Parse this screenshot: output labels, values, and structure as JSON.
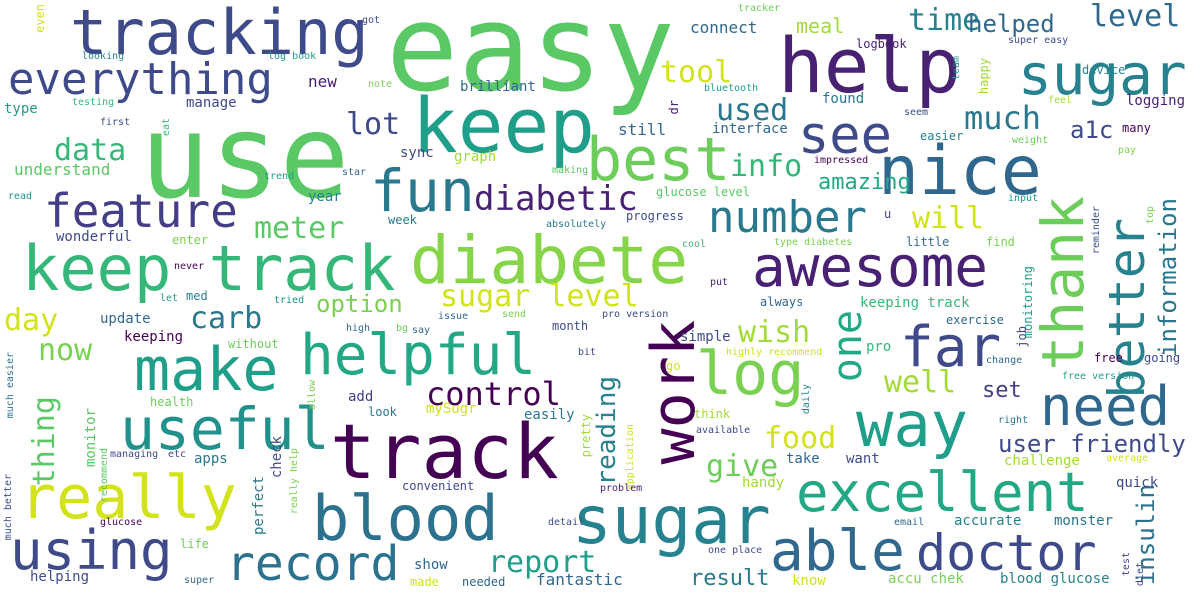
{
  "words": [
    {
      "text": "easy",
      "color": "#5ac864"
    },
    {
      "text": "use",
      "color": "#5ac864"
    },
    {
      "text": "help",
      "color": "#482173"
    },
    {
      "text": "tracking",
      "color": "#3e4a89"
    },
    {
      "text": "keep",
      "color": "#1f9e89"
    },
    {
      "text": "everything",
      "color": "#3e4a89"
    },
    {
      "text": "sugar",
      "color": "#26828e"
    },
    {
      "text": "nice",
      "color": "#30678d"
    },
    {
      "text": "see",
      "color": "#3e4a89"
    },
    {
      "text": "best",
      "color": "#6ccd5a"
    },
    {
      "text": "fun",
      "color": "#2a788e"
    },
    {
      "text": "feature",
      "color": "#433e85"
    },
    {
      "text": "keep track",
      "color": "#35b779"
    },
    {
      "text": "diabete",
      "color": "#86d549"
    },
    {
      "text": "awesome",
      "color": "#482173"
    },
    {
      "text": "thank",
      "color": "#6ccd5a"
    },
    {
      "text": "better",
      "color": "#26828e"
    },
    {
      "text": "information",
      "color": "#2a788e"
    },
    {
      "text": "number",
      "color": "#2a788e"
    },
    {
      "text": "diabetic",
      "color": "#482173"
    },
    {
      "text": "make",
      "color": "#1f9e89"
    },
    {
      "text": "helpful",
      "color": "#22a884"
    },
    {
      "text": "work",
      "color": "#440154"
    },
    {
      "text": "log",
      "color": "#7ad151"
    },
    {
      "text": "far",
      "color": "#3e4a89"
    },
    {
      "text": "way",
      "color": "#1f9e89"
    },
    {
      "text": "need",
      "color": "#30678d"
    },
    {
      "text": "useful",
      "color": "#21918c"
    },
    {
      "text": "track",
      "color": "#440154"
    },
    {
      "text": "really",
      "color": "#d2e21b"
    },
    {
      "text": "blood",
      "color": "#2c728e"
    },
    {
      "text": "sugar",
      "color": "#26828e"
    },
    {
      "text": "excellent",
      "color": "#22a884"
    },
    {
      "text": "using",
      "color": "#3e4a89"
    },
    {
      "text": "able",
      "color": "#31688e"
    },
    {
      "text": "doctor",
      "color": "#3e4a89"
    },
    {
      "text": "record",
      "color": "#2c728e"
    },
    {
      "text": "one",
      "color": "#22a884"
    },
    {
      "text": "control",
      "color": "#440154"
    },
    {
      "text": "report",
      "color": "#1f9e89"
    },
    {
      "text": "level",
      "color": "#31688e"
    },
    {
      "text": "time",
      "color": "#26828e"
    },
    {
      "text": "helped",
      "color": "#31688e"
    },
    {
      "text": "tool",
      "color": "#d2e21b"
    },
    {
      "text": "meal",
      "color": "#a2da37"
    },
    {
      "text": "used",
      "color": "#2a788e"
    },
    {
      "text": "much",
      "color": "#2a788e"
    },
    {
      "text": "lot",
      "color": "#3e4a89"
    },
    {
      "text": "info",
      "color": "#35b779"
    },
    {
      "text": "data",
      "color": "#35b779"
    },
    {
      "text": "a1c",
      "color": "#3e4a89"
    },
    {
      "text": "amazing",
      "color": "#22a884"
    },
    {
      "text": "will",
      "color": "#d2e21b"
    },
    {
      "text": "meter",
      "color": "#5ac864"
    },
    {
      "text": "sugar level",
      "color": "#d2e21b"
    },
    {
      "text": "option",
      "color": "#7ad151"
    },
    {
      "text": "carb",
      "color": "#2a788e"
    },
    {
      "text": "day",
      "color": "#d2e21b"
    },
    {
      "text": "now",
      "color": "#7ad151"
    },
    {
      "text": "wish",
      "color": "#a2da37"
    },
    {
      "text": "well",
      "color": "#a2da37"
    },
    {
      "text": "thing",
      "color": "#5ac864"
    },
    {
      "text": "reading",
      "color": "#26828e"
    },
    {
      "text": "food",
      "color": "#d2e21b"
    },
    {
      "text": "give",
      "color": "#6ccd5a"
    },
    {
      "text": "user friendly",
      "color": "#3e4a89"
    },
    {
      "text": "set",
      "color": "#433e85"
    },
    {
      "text": "insulin",
      "color": "#2c728e"
    },
    {
      "text": "connect",
      "color": "#31688e"
    },
    {
      "text": "logbook",
      "color": "#482173"
    },
    {
      "text": "manage",
      "color": "#3e4a89"
    },
    {
      "text": "new",
      "color": "#482173"
    },
    {
      "text": "brilliant",
      "color": "#31688e"
    },
    {
      "text": "found",
      "color": "#2a788e"
    },
    {
      "text": "interface",
      "color": "#30678d"
    },
    {
      "text": "logging",
      "color": "#482173"
    },
    {
      "text": "understand",
      "color": "#5ac864"
    },
    {
      "text": "sync",
      "color": "#3e4a89"
    },
    {
      "text": "graph",
      "color": "#a2da37"
    },
    {
      "text": "still",
      "color": "#31688e"
    },
    {
      "text": "year",
      "color": "#26828e"
    },
    {
      "text": "week",
      "color": "#2a788e"
    },
    {
      "text": "wonderful",
      "color": "#3e4a89"
    },
    {
      "text": "progress",
      "color": "#3e4a89"
    },
    {
      "text": "enter",
      "color": "#7ad151"
    },
    {
      "text": "keeping track",
      "color": "#35b779"
    },
    {
      "text": "little",
      "color": "#31688e"
    },
    {
      "text": "update",
      "color": "#31688e"
    },
    {
      "text": "keeping",
      "color": "#440154"
    },
    {
      "text": "simple",
      "color": "#3e4a89"
    },
    {
      "text": "exercise",
      "color": "#30678d"
    },
    {
      "text": "always",
      "color": "#30678d"
    },
    {
      "text": "pro",
      "color": "#35b779"
    },
    {
      "text": "free",
      "color": "#440154"
    },
    {
      "text": "going",
      "color": "#3e4a89"
    },
    {
      "text": "month",
      "color": "#3e4a89"
    },
    {
      "text": "add",
      "color": "#433e85"
    },
    {
      "text": "easily",
      "color": "#2a788e"
    },
    {
      "text": "mySugr",
      "color": "#d2e21b"
    },
    {
      "text": "look",
      "color": "#2a788e"
    },
    {
      "text": "health",
      "color": "#6ccd5a"
    },
    {
      "text": "apps",
      "color": "#2a788e"
    },
    {
      "text": "check",
      "color": "#3e4a89"
    },
    {
      "text": "want",
      "color": "#3e4a89"
    },
    {
      "text": "take",
      "color": "#31688e"
    },
    {
      "text": "handy",
      "color": "#a2da37"
    },
    {
      "text": "challenge",
      "color": "#a2da37"
    },
    {
      "text": "quick",
      "color": "#3e4a89"
    },
    {
      "text": "convenient",
      "color": "#3e4a89"
    },
    {
      "text": "accurate",
      "color": "#26828e"
    },
    {
      "text": "monster",
      "color": "#2c728e"
    },
    {
      "text": "show",
      "color": "#30678d"
    },
    {
      "text": "fantastic",
      "color": "#30678d"
    },
    {
      "text": "result",
      "color": "#2a788e"
    },
    {
      "text": "helping",
      "color": "#3e4a89"
    },
    {
      "text": "accu chek",
      "color": "#7ad151"
    },
    {
      "text": "blood glucose",
      "color": "#26828e"
    },
    {
      "text": "know",
      "color": "#d2e21b"
    },
    {
      "text": "needed",
      "color": "#31688e"
    },
    {
      "text": "made",
      "color": "#d2e21b"
    },
    {
      "text": "perfect",
      "color": "#2a788e"
    },
    {
      "text": "monitor",
      "color": "#5ac864"
    },
    {
      "text": "even",
      "color": "#d2e21b"
    },
    {
      "text": "type",
      "color": "#1f9e89"
    },
    {
      "text": "looking",
      "color": "#26828e"
    },
    {
      "text": "log book",
      "color": "#1f9e89"
    },
    {
      "text": "got",
      "color": "#3e4a89"
    },
    {
      "text": "tracker",
      "color": "#6ccd5a"
    },
    {
      "text": "bluetooth",
      "color": "#1f9e89"
    },
    {
      "text": "testing",
      "color": "#35b779"
    },
    {
      "text": "first",
      "color": "#3e4a89"
    },
    {
      "text": "note",
      "color": "#7ad151"
    },
    {
      "text": "eat",
      "color": "#35b779"
    },
    {
      "text": "dr",
      "color": "#482173"
    },
    {
      "text": "star",
      "color": "#30678d"
    },
    {
      "text": "making",
      "color": "#5ac864"
    },
    {
      "text": "read",
      "color": "#21918c"
    },
    {
      "text": "trend",
      "color": "#1f9e89"
    },
    {
      "text": "absolutely",
      "color": "#2a788e"
    },
    {
      "text": "glucose level",
      "color": "#5ac864"
    },
    {
      "text": "impressed",
      "color": "#440154"
    },
    {
      "text": "type diabetes",
      "color": "#7ad151"
    },
    {
      "text": "cool",
      "color": "#35b779"
    },
    {
      "text": "u",
      "color": "#3e4a89"
    },
    {
      "text": "find",
      "color": "#7ad151"
    },
    {
      "text": "monitoring",
      "color": "#1f9e89"
    },
    {
      "text": "never",
      "color": "#440154"
    },
    {
      "text": "med",
      "color": "#26828e"
    },
    {
      "text": "let",
      "color": "#1f9e89"
    },
    {
      "text": "tried",
      "color": "#21918c"
    },
    {
      "text": "say",
      "color": "#31688e"
    },
    {
      "text": "issue",
      "color": "#31688e"
    },
    {
      "text": "send",
      "color": "#7ad151"
    },
    {
      "text": "pro version",
      "color": "#3e4a89"
    },
    {
      "text": "put",
      "color": "#482173"
    },
    {
      "text": "high",
      "color": "#30678d"
    },
    {
      "text": "bg",
      "color": "#6ccd5a"
    },
    {
      "text": "without",
      "color": "#6ccd5a"
    },
    {
      "text": "bit",
      "color": "#3e4a89"
    },
    {
      "text": "highly recommend",
      "color": "#d2e21b"
    },
    {
      "text": "go",
      "color": "#d2e21b"
    },
    {
      "text": "job",
      "color": "#3e4a89"
    },
    {
      "text": "change",
      "color": "#30678d"
    },
    {
      "text": "free version",
      "color": "#1f9e89"
    },
    {
      "text": "much easier",
      "color": "#2c728e"
    },
    {
      "text": "recommend",
      "color": "#5ac864"
    },
    {
      "text": "allow",
      "color": "#7ad151"
    },
    {
      "text": "daily",
      "color": "#26828e"
    },
    {
      "text": "think",
      "color": "#a2da37"
    },
    {
      "text": "available",
      "color": "#3e4a89"
    },
    {
      "text": "application",
      "color": "#d2e21b"
    },
    {
      "text": "pretty",
      "color": "#a2da37"
    },
    {
      "text": "right",
      "color": "#2a788e"
    },
    {
      "text": "really help",
      "color": "#7ad151"
    },
    {
      "text": "managing",
      "color": "#3e4a89"
    },
    {
      "text": "etc",
      "color": "#3e4a89"
    },
    {
      "text": "problem",
      "color": "#482173"
    },
    {
      "text": "detail",
      "color": "#3e4a89"
    },
    {
      "text": "glucose",
      "color": "#440154"
    },
    {
      "text": "email",
      "color": "#31688e"
    },
    {
      "text": "life",
      "color": "#6ccd5a"
    },
    {
      "text": "one place",
      "color": "#3e4a89"
    },
    {
      "text": "super",
      "color": "#31688e"
    },
    {
      "text": "test",
      "color": "#433e85"
    },
    {
      "text": "diet",
      "color": "#3e4a89"
    },
    {
      "text": "much better",
      "color": "#3e4a89"
    },
    {
      "text": "super easy",
      "color": "#3e4a89"
    },
    {
      "text": "device",
      "color": "#26828e"
    },
    {
      "text": "team",
      "color": "#21918c"
    },
    {
      "text": "happy",
      "color": "#a2da37"
    },
    {
      "text": "feel",
      "color": "#a2da37"
    },
    {
      "text": "seem",
      "color": "#3e4a89"
    },
    {
      "text": "easier",
      "color": "#26828e"
    },
    {
      "text": "many",
      "color": "#440154"
    },
    {
      "text": "weight",
      "color": "#6ccd5a"
    },
    {
      "text": "pay",
      "color": "#7ad151"
    },
    {
      "text": "input",
      "color": "#21918c"
    },
    {
      "text": "reminder",
      "color": "#3e4a89"
    },
    {
      "text": "top",
      "color": "#7ad151"
    },
    {
      "text": "average",
      "color": "#d2e21b"
    }
  ]
}
